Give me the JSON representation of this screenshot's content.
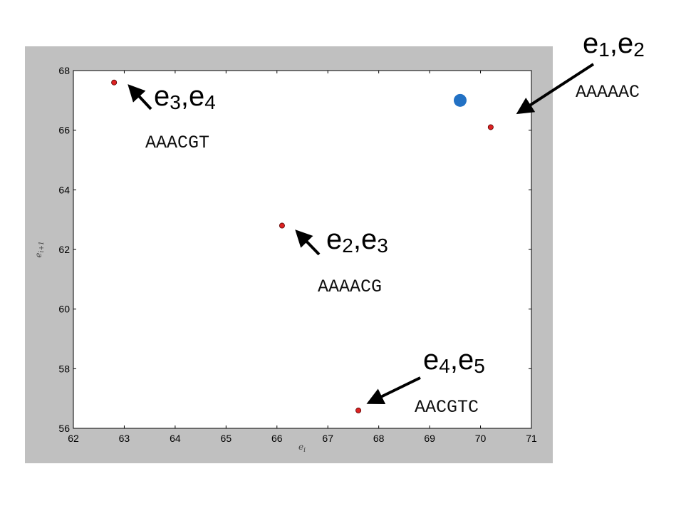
{
  "chart_data": {
    "type": "scatter",
    "xlabel": "e",
    "xlabel_sub": "i",
    "ylabel": "e",
    "ylabel_sub": "i+1",
    "xlim": [
      62,
      71
    ],
    "ylim": [
      56,
      68
    ],
    "xticks": [
      "62",
      "63",
      "64",
      "65",
      "66",
      "67",
      "68",
      "69",
      "70",
      "71"
    ],
    "yticks": [
      "56",
      "58",
      "60",
      "62",
      "64",
      "66",
      "68"
    ],
    "grid": false,
    "points": [
      {
        "x": 62.8,
        "y": 67.6,
        "color": "#dd2222",
        "size": "small"
      },
      {
        "x": 66.1,
        "y": 62.8,
        "color": "#dd2222",
        "size": "small"
      },
      {
        "x": 67.6,
        "y": 56.6,
        "color": "#dd2222",
        "size": "small"
      },
      {
        "x": 70.2,
        "y": 66.1,
        "color": "#dd2222",
        "size": "small"
      },
      {
        "x": 69.6,
        "y": 67.0,
        "color": "#2271c4",
        "size": "large"
      }
    ],
    "annotations": [
      {
        "e1": "e",
        "s1": "1",
        "sep": ",",
        "e2": "e",
        "s2": "2",
        "sequence": "AAAAAC"
      },
      {
        "e1": "e",
        "s1": "3",
        "sep": ",",
        "e2": "e",
        "s2": "4",
        "sequence": "AAACGT"
      },
      {
        "e1": "e",
        "s1": "2",
        "sep": ",",
        "e2": "e",
        "s2": "3",
        "sequence": "AAAACG"
      },
      {
        "e1": "e",
        "s1": "4",
        "sep": ",",
        "e2": "e",
        "s2": "5",
        "sequence": "AACGTC"
      }
    ]
  }
}
